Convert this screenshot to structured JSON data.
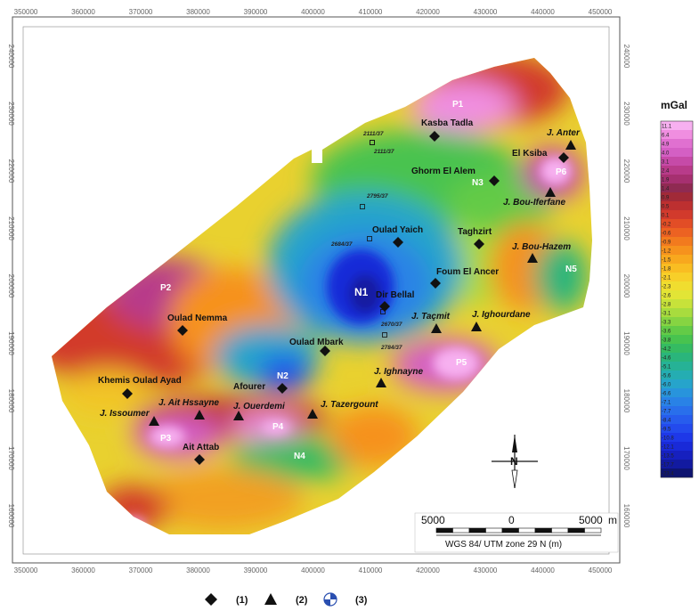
{
  "map": {
    "x_ticks": [
      "350000",
      "360000",
      "370000",
      "380000",
      "390000",
      "400000",
      "410000",
      "420000",
      "430000",
      "440000",
      "450000"
    ],
    "y_ticks": [
      "160000",
      "170000",
      "180000",
      "190000",
      "200000",
      "210000",
      "220000",
      "230000",
      "240000"
    ],
    "towns": [
      {
        "name": "Kasba Tadla",
        "dx": 488,
        "dy": 153
      },
      {
        "name": "El Ksiba",
        "dx": 633,
        "dy": 177
      },
      {
        "name": "Ghorm El Alem",
        "dx": 555,
        "dy": 203
      },
      {
        "name": "Oulad Yaich",
        "dx": 447,
        "dy": 272
      },
      {
        "name": "Taghzirt",
        "dx": 538,
        "dy": 274
      },
      {
        "name": "Foum El Ancer",
        "dx": 489,
        "dy": 318
      },
      {
        "name": "Dir Bellal",
        "dx": 432,
        "dy": 344
      },
      {
        "name": "Oulad Nemma",
        "dx": 205,
        "dy": 371
      },
      {
        "name": "Oulad Mbark",
        "dx": 365,
        "dy": 394
      },
      {
        "name": "Afourer",
        "dx": 317,
        "dy": 436
      },
      {
        "name": "Khemis Oulad Ayad",
        "dx": 143,
        "dy": 442
      },
      {
        "name": "Ait Attab",
        "dx": 224,
        "dy": 516
      }
    ],
    "mountains": [
      {
        "name": "J. Anter",
        "dx": 641,
        "dy": 163
      },
      {
        "name": "J. Bou-Iferfane",
        "dx": 618,
        "dy": 216
      },
      {
        "name": "J. Bou-Hazem",
        "dx": 598,
        "dy": 290
      },
      {
        "name": "J. Taçmit",
        "dx": 490,
        "dy": 369
      },
      {
        "name": "J. Ighourdane",
        "dx": 535,
        "dy": 367
      },
      {
        "name": "J. Ighnayne",
        "dx": 428,
        "dy": 430
      },
      {
        "name": "J. Ait Hssayne",
        "dx": 224,
        "dy": 466
      },
      {
        "name": "J. Ouerdemi",
        "dx": 268,
        "dy": 467
      },
      {
        "name": "J. Tazergount",
        "dx": 351,
        "dy": 465
      },
      {
        "name": "J. Issoumer",
        "dx": 173,
        "dy": 473
      }
    ],
    "wells": [
      "2111/37",
      "2111/37",
      "2795/37",
      "2684/37",
      "2670/37",
      "2784/37"
    ],
    "anomalies": {
      "P1": "P1",
      "P2": "P2",
      "P3": "P3",
      "P4": "P4",
      "P5": "P5",
      "P6": "P6",
      "N1": "N1",
      "N2": "N2",
      "N3": "N3",
      "N4": "N4",
      "N5": "N5"
    }
  },
  "colorbar": {
    "unit": "mGal",
    "values": [
      "11.1",
      "6.4",
      "4.9",
      "4.0",
      "3.1",
      "2.4",
      "1.9",
      "1.4",
      "0.9",
      "0.5",
      "0.1",
      "-0.2",
      "-0.6",
      "-0.9",
      "-1.2",
      "-1.5",
      "-1.8",
      "-2.1",
      "-2.3",
      "-2.6",
      "-2.8",
      "-3.1",
      "-3.3",
      "-3.6",
      "-3.8",
      "-4.2",
      "-4.6",
      "-5.1",
      "-5.6",
      "-6.0",
      "-6.6",
      "-7.1",
      "-7.7",
      "-8.4",
      "-9.5",
      "-10.8",
      "-12.1",
      "-13.5",
      "-17.7",
      "-23.4"
    ],
    "colors": [
      "#f7b0f0",
      "#f08ee0",
      "#e070d0",
      "#d45fc4",
      "#c64aa8",
      "#b83b8a",
      "#a63070",
      "#8f2a52",
      "#a12a38",
      "#bd3030",
      "#d23a2c",
      "#e24d26",
      "#ec6222",
      "#f27a1e",
      "#f6921d",
      "#f8a81e",
      "#f9bd22",
      "#f7cf29",
      "#f0dd2f",
      "#e2e536",
      "#c7e23a",
      "#a8dc3e",
      "#86d442",
      "#63cb47",
      "#48c34f",
      "#35bb62",
      "#2ab57b",
      "#26b296",
      "#25adb2",
      "#26a4cb",
      "#2894dc",
      "#2982e6",
      "#296feb",
      "#275ced",
      "#234aed",
      "#1e38e8",
      "#192ad8",
      "#1620bf",
      "#121aa0",
      "#0e1470"
    ]
  },
  "north": {
    "label": "N"
  },
  "scalebar": {
    "left": "5000",
    "mid": "0",
    "right": "5000",
    "unit": "m",
    "crs": "WGS 84/ UTM zone 29 N (m)"
  },
  "legend": [
    {
      "label": "(1)",
      "icon": "diamond-icon"
    },
    {
      "label": "(2)",
      "icon": "triangle-icon"
    },
    {
      "label": "(3)",
      "icon": "well-symbol-icon"
    }
  ]
}
